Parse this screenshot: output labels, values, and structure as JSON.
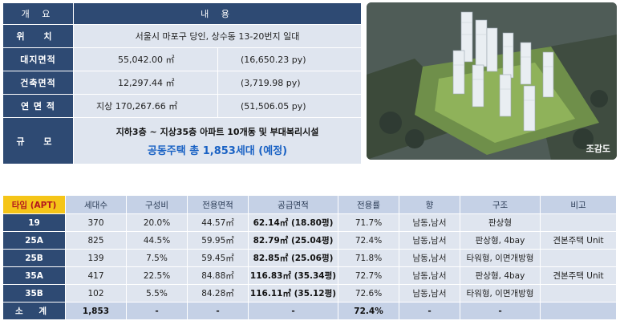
{
  "overview": {
    "header": {
      "col1": "개 요",
      "col2": "내 용"
    },
    "rows": [
      {
        "label": "위 치",
        "value": "서울시 마포구 당인, 상수동 13-20번지 일대"
      },
      {
        "label": "대지면적",
        "value": "55,042.00 ㎡",
        "value_py": "(16,650.23 py)"
      },
      {
        "label": "건축면적",
        "value": "12,297.44 ㎡",
        "value_py": "(3,719.98 py)"
      },
      {
        "label": "연 면 적",
        "value": "지상 170,267.66 ㎡",
        "value_py": "(51,506.05 py)"
      },
      {
        "label": "규 모",
        "line1": "지하3층 ~ 지상35층 아파트 10개동 및 부대복리시설",
        "line2": "공동주택 총 1,853세대 (예정)"
      }
    ]
  },
  "render_image": {
    "caption": "조감도"
  },
  "types_table": {
    "headers": [
      "타입 (APT)",
      "세대수",
      "구성비",
      "전용면적",
      "공급면적",
      "전용률",
      "향",
      "구조",
      "비고"
    ],
    "rows": [
      {
        "type": "19",
        "units": "370",
        "ratio": "20.0%",
        "exclusive": "44.57㎡",
        "supply": "62.14㎡ (18.80평)",
        "rate": "71.7%",
        "direction": "남동,남서",
        "structure": "판상형",
        "note": ""
      },
      {
        "type": "25A",
        "units": "825",
        "ratio": "44.5%",
        "exclusive": "59.95㎡",
        "supply": "82.79㎡ (25.04평)",
        "rate": "72.4%",
        "direction": "남동,남서",
        "structure": "판상형, 4bay",
        "note": "견본주택 Unit"
      },
      {
        "type": "25B",
        "units": "139",
        "ratio": "7.5%",
        "exclusive": "59.45㎡",
        "supply": "82.85㎡ (25.06평)",
        "rate": "71.8%",
        "direction": "남동,남서",
        "structure": "타워형, 이면개방형",
        "note": ""
      },
      {
        "type": "35A",
        "units": "417",
        "ratio": "22.5%",
        "exclusive": "84.88㎡",
        "supply": "116.83㎡ (35.34평)",
        "rate": "72.7%",
        "direction": "남동,남서",
        "structure": "판상형, 4bay",
        "note": "견본주택 Unit"
      },
      {
        "type": "35B",
        "units": "102",
        "ratio": "5.5%",
        "exclusive": "84.28㎡",
        "supply": "116.11㎡ (35.12평)",
        "rate": "72.6%",
        "direction": "남동,남서",
        "structure": "타워형, 이면개방형",
        "note": ""
      }
    ],
    "total": {
      "type": "소 계",
      "units": "1,853",
      "ratio": "-",
      "exclusive": "-",
      "supply": "-",
      "rate": "72.4%",
      "direction": "-",
      "structure": "-",
      "note": ""
    }
  }
}
